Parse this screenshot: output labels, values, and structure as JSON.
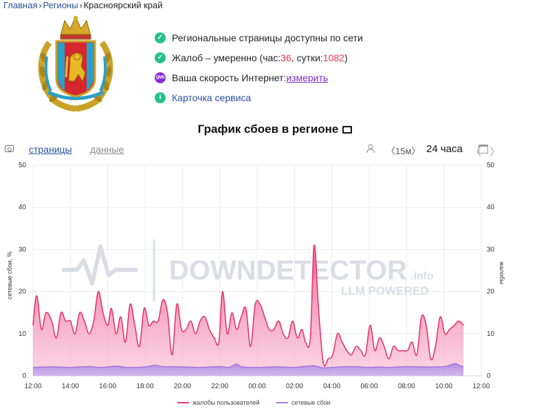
{
  "breadcrumb": {
    "home": "Главная",
    "regions": "Регионы",
    "current": "Красноярский край",
    "separator": "›"
  },
  "status": {
    "pages_available": "Региональные страницы доступны по сети",
    "complaints_prefix": "Жалоб – умеренно (час: ",
    "complaints_hour": "36",
    "complaints_mid": ", сутки: ",
    "complaints_day": "1082",
    "complaints_suffix": ")",
    "speed_label": "Ваша скорость Интернет: ",
    "speed_link": "измерить",
    "speed_icon_text": "QMS",
    "service_card": "Карточка сервиса",
    "info_icon_text": "i"
  },
  "chart_title": "График сбоев в регионе",
  "toolbar": {
    "tab_pages": "страницы",
    "tab_data": "данные",
    "interval": "〈15м〉",
    "period": "24 часа",
    "nav_prev": "〈",
    "nav_next": "〉"
  },
  "watermark": {
    "brand": "DOWNDETECTOR",
    "suffix": ".info",
    "tagline": "LLM POWERED"
  },
  "colors": {
    "complaints": "#e8336b",
    "outages": "#a978dc",
    "green": "#27c08d",
    "purple": "#8b2cd8",
    "link": "#2b4f9e"
  },
  "icons": {
    "status_ok": "check-circle-icon",
    "speed": "qms-icon",
    "info": "info-icon",
    "title": "monitor-icon",
    "screenshot": "camera-icon",
    "user": "user-icon",
    "calendar": "calendar-icon"
  },
  "chart_data": {
    "type": "area",
    "ylabel": "сетевые сбои, %",
    "ylabel_right": "жалобы",
    "ylim": [
      0,
      50
    ],
    "yticks": [
      "0",
      "10",
      "20",
      "30",
      "40",
      "50"
    ],
    "xlim": [
      12,
      36
    ],
    "xticks": [
      {
        "v": 12,
        "label": "12:00"
      },
      {
        "v": 14,
        "label": "14:00"
      },
      {
        "v": 16,
        "label": "16:00"
      },
      {
        "v": 18,
        "label": "18:00"
      },
      {
        "v": 20,
        "label": "20:00"
      },
      {
        "v": 22,
        "label": "22:00"
      },
      {
        "v": 24,
        "label": "00:00"
      },
      {
        "v": 26,
        "label": "02:00"
      },
      {
        "v": 28,
        "label": "04:00"
      },
      {
        "v": 30,
        "label": "06:00"
      },
      {
        "v": 32,
        "label": "08:00"
      },
      {
        "v": 34,
        "label": "10:00"
      },
      {
        "v": 36,
        "label": "12:00"
      }
    ],
    "grid": true,
    "legend_position": "bottom-center",
    "series": [
      {
        "name": "жалобы пользователей",
        "color": "#e8336b",
        "points": [
          [
            12.0,
            12
          ],
          [
            12.2,
            19
          ],
          [
            12.45,
            11
          ],
          [
            12.7,
            15
          ],
          [
            13.0,
            13
          ],
          [
            13.25,
            9
          ],
          [
            13.5,
            15
          ],
          [
            13.75,
            13
          ],
          [
            14.0,
            13
          ],
          [
            14.25,
            10
          ],
          [
            14.5,
            15
          ],
          [
            14.75,
            13
          ],
          [
            15.0,
            10
          ],
          [
            15.25,
            13
          ],
          [
            15.5,
            20
          ],
          [
            15.75,
            15
          ],
          [
            16.0,
            12
          ],
          [
            16.2,
            16
          ],
          [
            16.45,
            10
          ],
          [
            16.7,
            14
          ],
          [
            16.95,
            8
          ],
          [
            17.2,
            17
          ],
          [
            17.45,
            12
          ],
          [
            17.7,
            7
          ],
          [
            17.95,
            16
          ],
          [
            18.2,
            12
          ],
          [
            18.45,
            13
          ],
          [
            18.7,
            13
          ],
          [
            18.95,
            18
          ],
          [
            19.2,
            15
          ],
          [
            19.45,
            5
          ],
          [
            19.7,
            17
          ],
          [
            19.95,
            11
          ],
          [
            20.2,
            11
          ],
          [
            20.45,
            13
          ],
          [
            20.7,
            10
          ],
          [
            20.95,
            13
          ],
          [
            21.2,
            14
          ],
          [
            21.45,
            11
          ],
          [
            21.7,
            9
          ],
          [
            21.95,
            8
          ],
          [
            22.15,
            20
          ],
          [
            22.4,
            10
          ],
          [
            22.65,
            15
          ],
          [
            22.9,
            11
          ],
          [
            23.15,
            14
          ],
          [
            23.4,
            16
          ],
          [
            23.65,
            7
          ],
          [
            23.9,
            17
          ],
          [
            24.15,
            17
          ],
          [
            24.4,
            14
          ],
          [
            24.65,
            11
          ],
          [
            24.9,
            11
          ],
          [
            25.15,
            13
          ],
          [
            25.4,
            10
          ],
          [
            25.65,
            9
          ],
          [
            25.9,
            13
          ],
          [
            26.15,
            9
          ],
          [
            26.4,
            11
          ],
          [
            26.6,
            8
          ],
          [
            26.85,
            9
          ],
          [
            27.05,
            31
          ],
          [
            27.3,
            15
          ],
          [
            27.55,
            3
          ],
          [
            27.8,
            4
          ],
          [
            28.05,
            5
          ],
          [
            28.3,
            10
          ],
          [
            28.55,
            8
          ],
          [
            28.8,
            6
          ],
          [
            29.05,
            5
          ],
          [
            29.3,
            7
          ],
          [
            29.55,
            6
          ],
          [
            29.8,
            5
          ],
          [
            30.05,
            12
          ],
          [
            30.3,
            6
          ],
          [
            30.55,
            9
          ],
          [
            30.8,
            7
          ],
          [
            31.05,
            4
          ],
          [
            31.3,
            7
          ],
          [
            31.55,
            6
          ],
          [
            31.8,
            6
          ],
          [
            32.05,
            6
          ],
          [
            32.3,
            8
          ],
          [
            32.55,
            5
          ],
          [
            32.8,
            14
          ],
          [
            33.05,
            12
          ],
          [
            33.3,
            4
          ],
          [
            33.55,
            7
          ],
          [
            33.8,
            14
          ],
          [
            34.05,
            10
          ],
          [
            34.3,
            11
          ],
          [
            34.55,
            12
          ],
          [
            34.8,
            13
          ],
          [
            35.05,
            12
          ]
        ]
      },
      {
        "name": "сетевые сбои",
        "color": "#a978dc",
        "points": [
          [
            12.0,
            2.0
          ],
          [
            13.0,
            2.1
          ],
          [
            14.0,
            2.0
          ],
          [
            15.0,
            2.2
          ],
          [
            15.5,
            2.0
          ],
          [
            16.0,
            2.1
          ],
          [
            16.5,
            2.3
          ],
          [
            17.0,
            2.0
          ],
          [
            18.0,
            2.1
          ],
          [
            18.5,
            2.5
          ],
          [
            19.0,
            2.2
          ],
          [
            20.0,
            2.1
          ],
          [
            21.0,
            2.0
          ],
          [
            22.0,
            2.2
          ],
          [
            22.5,
            2.0
          ],
          [
            22.9,
            2.8
          ],
          [
            23.2,
            2.1
          ],
          [
            24.0,
            2.0
          ],
          [
            25.0,
            2.1
          ],
          [
            26.0,
            2.0
          ],
          [
            27.0,
            2.4
          ],
          [
            27.5,
            1.9
          ],
          [
            28.0,
            2.0
          ],
          [
            29.0,
            2.2
          ],
          [
            30.0,
            2.0
          ],
          [
            30.5,
            2.1
          ],
          [
            31.0,
            2.0
          ],
          [
            32.0,
            2.2
          ],
          [
            33.0,
            2.1
          ],
          [
            34.0,
            2.2
          ],
          [
            34.6,
            2.9
          ],
          [
            34.9,
            2.3
          ],
          [
            35.05,
            2.2
          ]
        ]
      }
    ]
  }
}
